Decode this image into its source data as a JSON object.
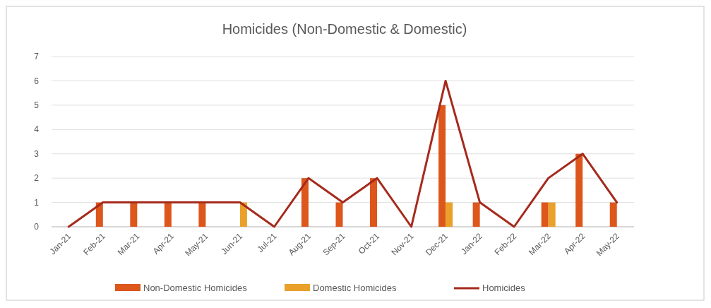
{
  "chart_data": {
    "type": "bar",
    "title": "Homicides (Non-Domestic & Domestic)",
    "categories": [
      "Jan-21",
      "Feb-21",
      "Mar-21",
      "Apr-21",
      "May-21",
      "Jun-21",
      "Jul-21",
      "Aug-21",
      "Sep-21",
      "Oct-21",
      "Nov-21",
      "Dec-21",
      "Jan-22",
      "Feb-22",
      "Mar-22",
      "Apr-22",
      "May-22"
    ],
    "series": [
      {
        "name": "Non-Domestic Homicides",
        "color": "#dd561c",
        "values": [
          0,
          1,
          1,
          1,
          1,
          0,
          0,
          2,
          1,
          2,
          0,
          5,
          1,
          0,
          1,
          3,
          1
        ]
      },
      {
        "name": "Domestic Homicides",
        "color": "#e9a12b",
        "values": [
          0,
          0,
          0,
          0,
          0,
          1,
          0,
          0,
          0,
          0,
          0,
          1,
          0,
          0,
          1,
          0,
          0
        ]
      },
      {
        "name": "Homicides",
        "type": "line",
        "color": "#a52a1c",
        "values": [
          0,
          1,
          1,
          1,
          1,
          1,
          0,
          2,
          1,
          2,
          0,
          6,
          1,
          0,
          2,
          3,
          1
        ]
      }
    ],
    "ylim": [
      0,
      7
    ],
    "yticks": [
      0,
      1,
      2,
      3,
      4,
      5,
      6,
      7
    ],
    "grid": "y",
    "legend": "bottom"
  }
}
